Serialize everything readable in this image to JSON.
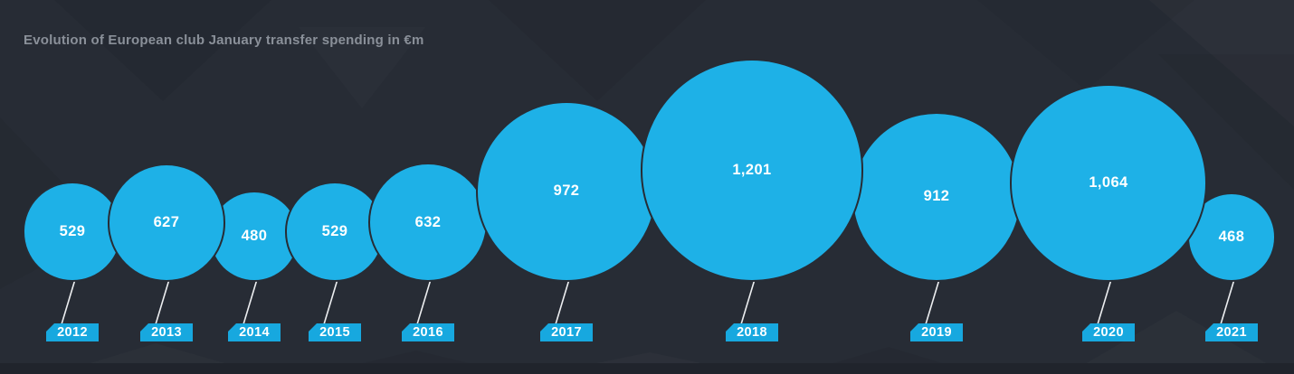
{
  "title": "Evolution of European club January transfer spending in €m",
  "chart_data": {
    "type": "bubble",
    "title": "Evolution of European club January transfer spending in €m",
    "unit": "€m",
    "categories": [
      "2012",
      "2013",
      "2014",
      "2015",
      "2016",
      "2017",
      "2018",
      "2019",
      "2020",
      "2021"
    ],
    "values": [
      529,
      627,
      480,
      529,
      632,
      972,
      1201,
      912,
      1064,
      468
    ],
    "value_labels": [
      "529",
      "627",
      "480",
      "529",
      "632",
      "972",
      "1,201",
      "912",
      "1,064",
      "468"
    ],
    "layout_hint": "horizontal bubble timeline, bubbles bottom-aligned, radius proportional to value, year tags below connected by thin slanted lines",
    "colors": {
      "background": "#272c35",
      "bubble": "#1eb1e7",
      "year_tag": "#17a8df",
      "value_text": "#ffffff",
      "title_text": "#8a9099",
      "connector": "#eceef0",
      "footer_band": "#20242c"
    }
  }
}
